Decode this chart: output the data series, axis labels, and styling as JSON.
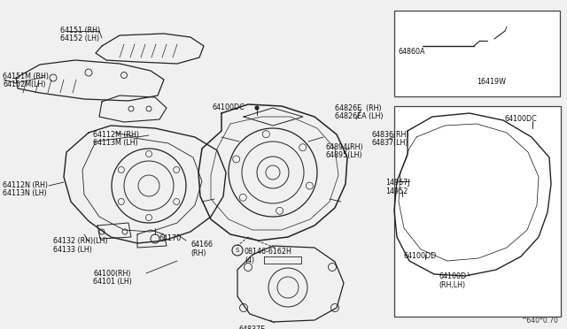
{
  "bg_color": "#f0f0f0",
  "line_color": "#222222",
  "text_color": "#111111",
  "watermark": "^640*0.70",
  "fs": 5.8,
  "labels": {
    "64151_RH": "64151 (RH)",
    "64152_LH": "64152 (LH)",
    "64151M_RH": "64151M (RH)",
    "64152M_LH": "64152M(LH)",
    "64112M_RH": "64112M (RH)",
    "64113M_LH": "64113M (LH)",
    "64112N_RH": "64112N (RH)",
    "64113N_LH": "64113N (LH)",
    "64132": "64132 (RH)(LH)",
    "64133": "64133 (LH)",
    "64170": "64170",
    "64166": "64166\n(RH)",
    "64100_RH": "64100(RH)",
    "64101_LH": "64101 (LH)",
    "64100DC_top": "64100DC",
    "64894": "64894(RH)",
    "64895": "64895(LH)",
    "64826E": "64826E  (RH)",
    "64826EA": "64826EA (LH)",
    "64836": "64836(RH)",
    "64837": "64837(LH)",
    "64837E": "64837E",
    "08146": "08146-6162H\n(4)",
    "64860A": "64860A",
    "16419W": "16419W",
    "64100DC_r": "64100DC",
    "64100DD": "64100DD",
    "64100D": "64100D\n(RH,LH)",
    "14957J": "14957J",
    "14952": "14952"
  }
}
